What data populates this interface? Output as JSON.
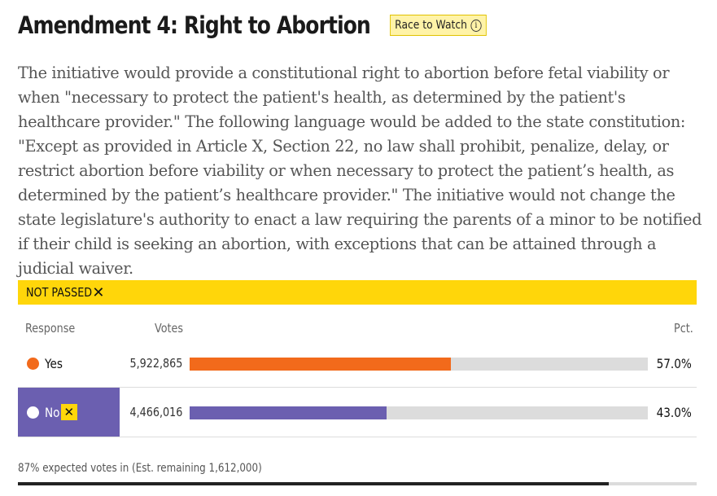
{
  "header": {
    "title": "Amendment 4: Right to Abortion",
    "badge_label": "Race to Watch",
    "badge_icon": "info-icon"
  },
  "description": "The initiative would provide a constitutional right to abortion before fetal viability or when \"necessary to protect the patient's health, as determined by the patient's healthcare provider.\" The following language would be added to the state constitution: \"Except as provided in Article X, Section 22, no law shall prohibit, penalize, delay, or restrict abortion before viability or when necessary to protect the patient’s health, as determined by the patient’s healthcare provider.\" The initiative would not change the state legislature's authority to enact a law requiring the parents of a minor to be notified if their child is seeking an abortion, with exceptions that can be attained through a judicial waiver.",
  "status": {
    "label": "NOT PASSED",
    "icon": "close-icon",
    "color": "#ffd60a"
  },
  "table": {
    "columns": {
      "response": "Response",
      "votes": "Votes",
      "pct": "Pct."
    },
    "rows": [
      {
        "label": "Yes",
        "votes": "5,922,865",
        "pct": "57.0%",
        "share": 0.57,
        "color": "#f26a1b",
        "winner": false
      },
      {
        "label": "No",
        "votes": "4,466,016",
        "pct": "43.0%",
        "share": 0.43,
        "color": "#6b5fb0",
        "winner": true,
        "winner_icon": "check-x-icon"
      }
    ]
  },
  "footer": {
    "text": "87% expected votes in (Est. remaining 1,612,000)",
    "expected_share": 0.87
  }
}
